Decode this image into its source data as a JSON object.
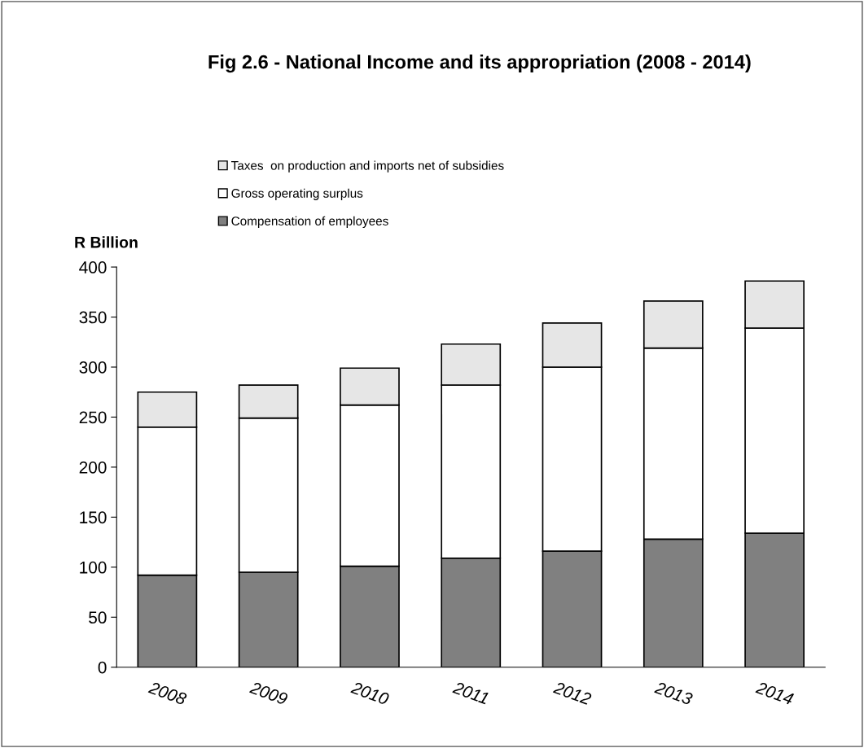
{
  "chart_data": {
    "type": "bar",
    "title": "Fig 2.6 - National Income and its appropriation (2008 - 2014)",
    "ylabel": "R Billion",
    "categories": [
      "2008",
      "2009",
      "2010",
      "2011",
      "2012",
      "2013",
      "2014"
    ],
    "stacked": true,
    "series": [
      {
        "name": "Compensation of employees",
        "color": "#808080",
        "values": [
          92,
          95,
          101,
          109,
          116,
          128,
          134
        ]
      },
      {
        "name": "Gross operating surplus",
        "color": "#ffffff",
        "values": [
          148,
          154,
          161,
          173,
          184,
          191,
          205
        ]
      },
      {
        "name": "Taxes  on production and imports net of subsidies",
        "color": "#e6e6e6",
        "values": [
          35,
          33,
          37,
          41,
          44,
          47,
          47
        ]
      }
    ],
    "ylim": [
      0,
      400
    ],
    "yticks": [
      0,
      50,
      100,
      150,
      200,
      250,
      300,
      350,
      400
    ],
    "grid": false,
    "legend": "top left"
  }
}
